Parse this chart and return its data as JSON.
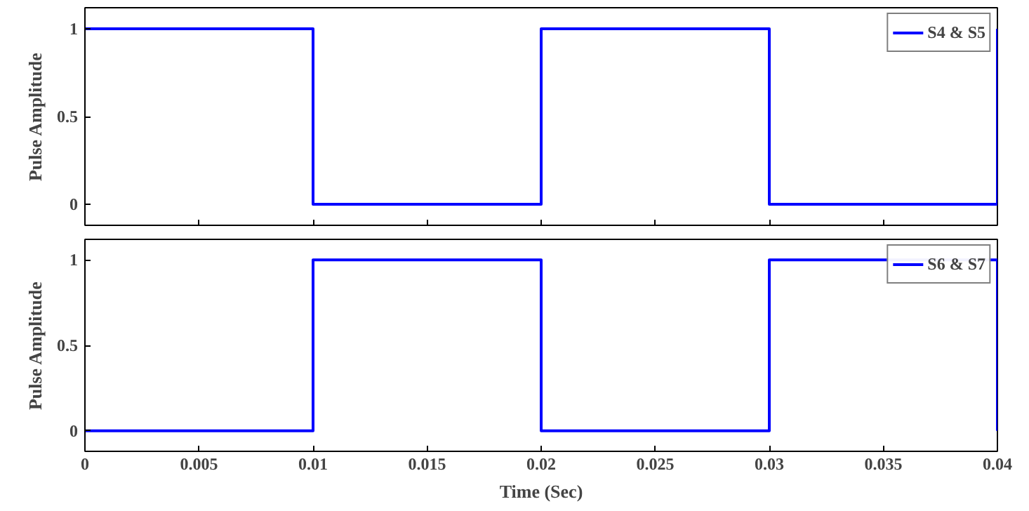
{
  "chart_data": [
    {
      "type": "step",
      "ylabel": "Pulse Amplitude",
      "x": [
        0,
        0.01,
        0.02,
        0.03,
        0.04
      ],
      "series": [
        {
          "name": "S4 & S5",
          "color": "#0000ff",
          "values": [
            1,
            0,
            1,
            0,
            1
          ]
        }
      ],
      "xlim": [
        0,
        0.04
      ],
      "xticks": [
        0,
        0.005,
        0.01,
        0.015,
        0.02,
        0.025,
        0.03,
        0.035,
        0.04
      ],
      "ylim": [
        -0.12,
        1.12
      ],
      "yticks": [
        0,
        0.5,
        1
      ],
      "tick_labels": "y",
      "legend": "top right",
      "grid": false
    },
    {
      "type": "step",
      "ylabel": "Pulse Amplitude",
      "xlabel": "Time (Sec)",
      "x": [
        0,
        0.01,
        0.02,
        0.03,
        0.04
      ],
      "series": [
        {
          "name": "S6 & S7",
          "color": "#0000ff",
          "values": [
            0,
            1,
            0,
            1,
            0
          ]
        }
      ],
      "xlim": [
        0,
        0.04
      ],
      "xticks": [
        0,
        0.005,
        0.01,
        0.015,
        0.02,
        0.025,
        0.03,
        0.035,
        0.04
      ],
      "ylim": [
        -0.12,
        1.12
      ],
      "yticks": [
        0,
        0.5,
        1
      ],
      "legend": "top right",
      "grid": false
    }
  ]
}
